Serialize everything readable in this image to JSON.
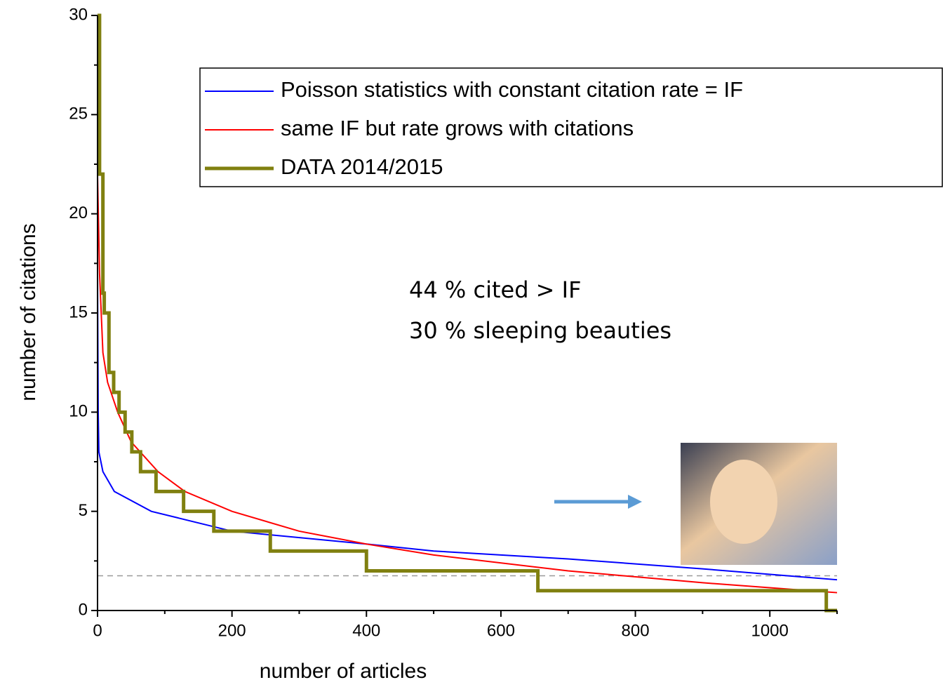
{
  "chart_data": {
    "type": "line",
    "xlabel": "number of  articles",
    "ylabel": "number of citations",
    "xlim": [
      0,
      1100
    ],
    "ylim": [
      0,
      30
    ],
    "xticks": [
      0,
      200,
      400,
      600,
      800,
      1000
    ],
    "yticks": [
      0,
      5,
      10,
      15,
      20,
      25,
      30
    ],
    "xminor_ticks": [
      100,
      300,
      500,
      700,
      900,
      1100
    ],
    "yminor_ticks": [
      2.5,
      7.5,
      12.5,
      17.5,
      22.5,
      27.5
    ],
    "legend": "top-right",
    "reference_line": {
      "value": 1.75,
      "color": "#999999"
    },
    "annotations": [
      "44 % cited > IF",
      "30 % sleeping beauties"
    ],
    "series": [
      {
        "name": "Poisson statistics with constant citation rate = IF",
        "color": "#0000ff",
        "width": 2,
        "x": [
          0,
          1,
          2,
          8,
          25,
          80,
          200,
          400,
          500,
          700,
          900,
          1100
        ],
        "values": [
          17,
          10,
          8,
          7,
          6,
          5,
          4,
          3.35,
          3,
          2.6,
          2.1,
          1.55
        ]
      },
      {
        "name": "same IF but rate grows with citations",
        "color": "#ff0000",
        "width": 2,
        "x": [
          0,
          3,
          8,
          15,
          30,
          50,
          90,
          130,
          200,
          300,
          400,
          500,
          700,
          900,
          1100
        ],
        "values": [
          22,
          17,
          13,
          11.5,
          10,
          8.5,
          7,
          6,
          5,
          4,
          3.35,
          2.8,
          2,
          1.4,
          0.9
        ]
      },
      {
        "name": "DATA 2014/2015",
        "color": "#808010",
        "width": 5,
        "x": [
          0,
          3,
          3,
          8,
          8,
          10,
          10,
          17,
          17,
          24,
          24,
          32,
          32,
          41,
          41,
          51,
          51,
          64,
          64,
          87,
          87,
          128,
          128,
          173,
          173,
          257,
          257,
          400,
          400,
          655,
          655,
          1084,
          1084,
          1100
        ],
        "values": [
          30,
          30,
          22,
          22,
          16,
          16,
          15,
          15,
          12,
          12,
          11,
          11,
          10,
          10,
          9,
          9,
          8,
          8,
          7,
          7,
          6,
          6,
          5,
          5,
          4,
          4,
          3,
          3,
          2,
          2,
          1,
          1,
          0,
          0
        ]
      }
    ]
  }
}
